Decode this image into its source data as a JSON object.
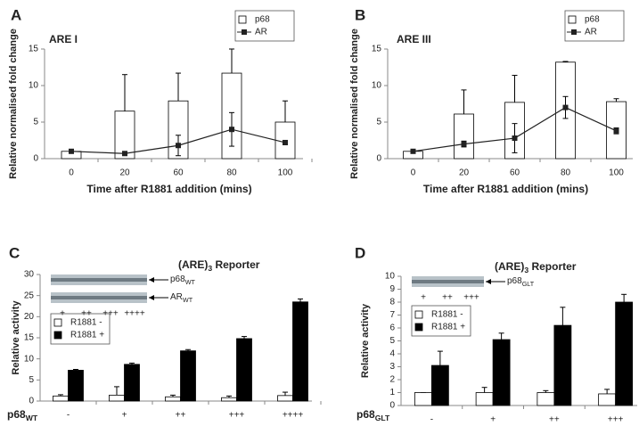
{
  "chart_data": [
    {
      "type": "bar",
      "panel": "A",
      "title": "ARE I",
      "x_label": "Time after R1881 addition (mins)",
      "y_label": "Relative normalised fold change",
      "categories": [
        "0",
        "20",
        "60",
        "80",
        "100"
      ],
      "series": [
        {
          "name": "p68",
          "type": "bar",
          "color": "#ffffff",
          "values": [
            1.0,
            6.5,
            7.9,
            11.7,
            5.0
          ],
          "errors": [
            0.2,
            5.0,
            3.8,
            3.3,
            2.9
          ]
        },
        {
          "name": "AR",
          "type": "line",
          "color": "#222222",
          "values": [
            1.0,
            0.7,
            1.8,
            4.0,
            2.2
          ],
          "errors": [
            0.2,
            0.1,
            1.4,
            2.3,
            0.3
          ]
        }
      ],
      "ylim": [
        0,
        15
      ],
      "yticks": [
        0,
        5,
        10,
        15
      ],
      "legend": "upper right"
    },
    {
      "type": "bar",
      "panel": "B",
      "title": "ARE III",
      "x_label": "Time after R1881 addition (mins)",
      "y_label": "Relative normalised fold change",
      "categories": [
        "0",
        "20",
        "60",
        "80",
        "100"
      ],
      "series": [
        {
          "name": "p68",
          "type": "bar",
          "color": "#ffffff",
          "values": [
            1.0,
            6.1,
            7.7,
            13.2,
            7.8
          ],
          "errors": [
            0.1,
            3.3,
            3.7,
            0.1,
            0.4
          ]
        },
        {
          "name": "AR",
          "type": "line",
          "color": "#222222",
          "values": [
            1.0,
            2.0,
            2.8,
            7.0,
            3.8
          ],
          "errors": [
            0.2,
            0.4,
            2.0,
            1.5,
            0.4
          ]
        }
      ],
      "ylim": [
        0,
        15
      ],
      "yticks": [
        0,
        5,
        10,
        15
      ],
      "legend": "upper right"
    },
    {
      "type": "bar",
      "panel": "C",
      "title": {
        "text": "(ARE)",
        "sub": "3",
        "rest": " Reporter"
      },
      "x_label": {
        "text": "p68",
        "sub": "WT"
      },
      "y_label": "Relative activity",
      "categories": [
        "-",
        "+",
        "++",
        "+++",
        "++++"
      ],
      "series": [
        {
          "name": "R1881 -",
          "type": "bar",
          "color": "#ffffff",
          "values": [
            1.2,
            1.4,
            1.0,
            0.8,
            1.3
          ],
          "errors": [
            0.3,
            2.0,
            0.4,
            0.4,
            0.8
          ]
        },
        {
          "name": "R1881 +",
          "type": "bar",
          "color": "#000000",
          "values": [
            7.3,
            8.7,
            11.9,
            14.8,
            23.5
          ],
          "errors": [
            0.2,
            0.3,
            0.3,
            0.5,
            0.7
          ]
        }
      ],
      "ylim": [
        0,
        30
      ],
      "yticks": [
        0,
        5,
        10,
        15,
        20,
        25,
        30
      ],
      "legend": "upper left",
      "blot": {
        "bands": [
          {
            "text": "p68",
            "sub": "WT"
          },
          {
            "text": "AR",
            "sub": "WT"
          }
        ],
        "lanes": [
          "+",
          "++",
          "+++",
          "++++"
        ]
      }
    },
    {
      "type": "bar",
      "panel": "D",
      "title": {
        "text": "(ARE)",
        "sub": "3",
        "rest": " Reporter"
      },
      "x_label": {
        "text": "p68",
        "sub": "GLT"
      },
      "y_label": "Relative activity",
      "categories": [
        "-",
        "+",
        "++",
        "+++"
      ],
      "series": [
        {
          "name": "R1881 -",
          "type": "bar",
          "color": "#ffffff",
          "values": [
            1.0,
            1.0,
            1.0,
            0.9
          ],
          "errors": [
            0,
            0.4,
            0.15,
            0.35
          ]
        },
        {
          "name": "R1881 +",
          "type": "bar",
          "color": "#000000",
          "values": [
            3.1,
            5.1,
            6.2,
            8.0
          ],
          "errors": [
            1.1,
            0.5,
            1.4,
            0.6
          ]
        }
      ],
      "ylim": [
        0,
        10
      ],
      "yticks": [
        0,
        1,
        2,
        3,
        4,
        5,
        6,
        7,
        8,
        9,
        10
      ],
      "legend": "upper left",
      "blot": {
        "bands": [
          {
            "text": "p68",
            "sub": "GLT"
          }
        ],
        "lanes": [
          "+",
          "++",
          "+++"
        ]
      }
    }
  ]
}
